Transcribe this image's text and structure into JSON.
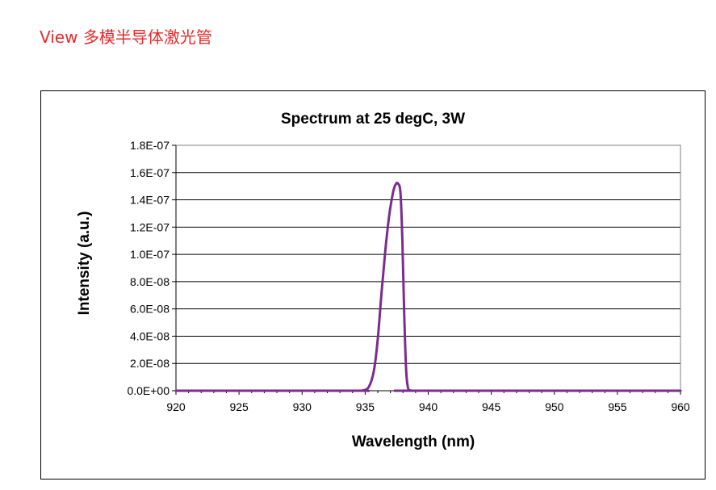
{
  "header": {
    "view_link": "View 多模半导体激光管"
  },
  "chart_data": {
    "type": "line",
    "title": "Spectrum at 25 degC, 3W",
    "xlabel": "Wavelength (nm)",
    "ylabel": "Intensity (a.u.)",
    "xlim": [
      920,
      960
    ],
    "ylim": [
      0,
      1.8e-07
    ],
    "xticks": [
      920,
      925,
      930,
      935,
      940,
      945,
      950,
      955,
      960
    ],
    "xtick_labels": [
      "920",
      "925",
      "930",
      "935",
      "940",
      "945",
      "950",
      "955",
      "960"
    ],
    "yticks": [
      0,
      2e-08,
      4e-08,
      6e-08,
      8e-08,
      1e-07,
      1.2e-07,
      1.4e-07,
      1.6e-07,
      1.8e-07
    ],
    "ytick_labels": [
      "0.0E+00",
      "2.0E-08",
      "4.0E-08",
      "6.0E-08",
      "8.0E-08",
      "1.0E-07",
      "1.2E-07",
      "1.4E-07",
      "1.6E-07",
      "1.8E-07"
    ],
    "grid": "horizontal",
    "series": [
      {
        "color": "#7b2c8e",
        "x": [
          920,
          934.0,
          934.8,
          935.3,
          935.7,
          936.0,
          936.3,
          936.6,
          936.9,
          937.2,
          937.4,
          937.6,
          937.8,
          937.95,
          938.1,
          938.25,
          938.4,
          938.6,
          939.0,
          960
        ],
        "y": [
          0,
          0,
          2e-10,
          3e-09,
          1.5e-08,
          3.8e-08,
          7.2e-08,
          1.03e-07,
          1.28e-07,
          1.45e-07,
          1.51e-07,
          1.52e-07,
          1.45e-07,
          1.1e-07,
          5.5e-08,
          1.5e-08,
          2e-09,
          2e-10,
          0,
          0
        ]
      }
    ]
  }
}
